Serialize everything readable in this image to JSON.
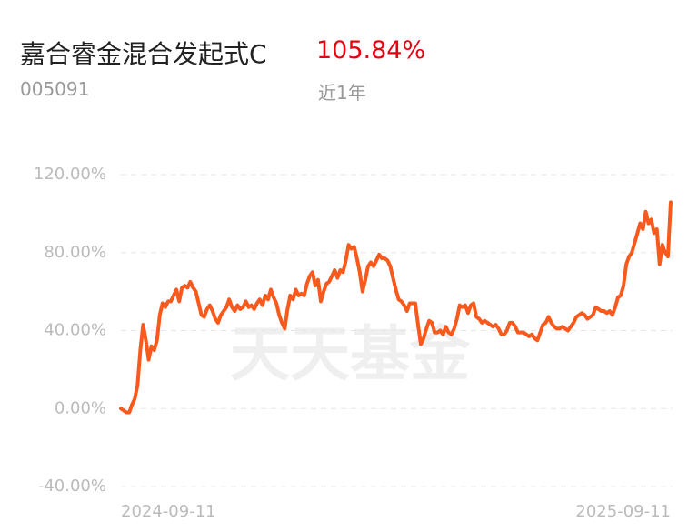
{
  "chart_data": {
    "type": "line",
    "title": "嘉合睿金混合发起式C",
    "subtitle": "105.84%",
    "fund_code": "005091",
    "period": "近1年",
    "watermark": "天天基金",
    "categories": [
      "2024-09-11",
      null,
      null,
      null,
      null,
      null,
      null,
      null,
      null,
      null,
      null,
      null,
      null,
      null,
      null,
      null,
      null,
      null,
      null,
      null,
      null,
      null,
      null,
      null,
      null,
      null,
      null,
      null,
      null,
      null,
      null,
      null,
      null,
      null,
      null,
      null,
      null,
      null,
      null,
      null,
      null,
      null,
      null,
      null,
      null,
      null,
      null,
      null,
      null,
      null,
      null,
      null,
      null,
      null,
      null,
      null,
      null,
      null,
      null,
      null,
      null,
      null,
      null,
      null,
      null,
      null,
      null,
      null,
      null,
      null,
      null,
      null,
      null,
      null,
      null,
      null,
      null,
      null,
      null,
      null,
      null,
      null,
      null,
      null,
      null,
      null,
      null,
      null,
      null,
      null,
      null,
      null,
      null,
      null,
      null,
      null,
      null,
      null,
      null,
      null,
      null,
      null,
      null,
      null,
      null,
      null,
      null,
      null,
      null,
      null,
      null,
      null,
      null,
      null,
      null,
      null,
      null,
      null,
      null,
      null,
      null,
      null,
      null,
      null,
      null,
      null,
      null,
      null,
      null,
      null,
      null,
      null,
      null,
      null,
      null,
      null,
      null,
      null,
      null,
      null,
      null,
      null,
      null,
      null,
      null,
      null,
      null,
      null,
      null,
      null,
      null,
      null,
      null,
      null,
      null,
      null,
      null,
      null,
      null,
      null,
      null,
      null,
      null,
      null,
      null,
      null,
      null,
      null,
      null,
      null,
      null,
      null,
      null,
      null,
      null,
      null,
      null,
      null,
      null,
      null,
      null,
      null,
      null,
      null,
      null,
      null,
      null,
      null,
      null,
      null,
      null,
      null,
      null,
      null,
      null,
      null,
      null,
      null,
      "2025-09-11"
    ],
    "values": [
      0,
      -1,
      -2,
      -2,
      2,
      5,
      12,
      30,
      43,
      35,
      25,
      32,
      30,
      35,
      48,
      54,
      52,
      55,
      55,
      58,
      61,
      55,
      62,
      63,
      62,
      65,
      62,
      60,
      54,
      48,
      47,
      51,
      53,
      50,
      46,
      44,
      48,
      50,
      52,
      56,
      52,
      50,
      53,
      51,
      52,
      55,
      52,
      53,
      51,
      54,
      56,
      53,
      58,
      56,
      61,
      57,
      54,
      48,
      44,
      41,
      51,
      58,
      56,
      61,
      58,
      59,
      58,
      64,
      68,
      70,
      63,
      66,
      55,
      60,
      64,
      65,
      68,
      71,
      67,
      71,
      70,
      76,
      84,
      82,
      83,
      77,
      70,
      60,
      66,
      73,
      75,
      73,
      76,
      79,
      77,
      77,
      76,
      73,
      67,
      61,
      56,
      55,
      53,
      50,
      54,
      54,
      54,
      43,
      33,
      36,
      41,
      45,
      44,
      39,
      39,
      40,
      38,
      42,
      39,
      38,
      41,
      46,
      53,
      52,
      53,
      49,
      53,
      54,
      47,
      46,
      44,
      45,
      44,
      43,
      42,
      43,
      41,
      38,
      38,
      40,
      44,
      44,
      42,
      39,
      39,
      39,
      38,
      37,
      38,
      36,
      35,
      39,
      43,
      44,
      47,
      44,
      42,
      41,
      41,
      42,
      41,
      40,
      42,
      44,
      47,
      48,
      49,
      48,
      46,
      47,
      48,
      52,
      51,
      50,
      50,
      49,
      50,
      48,
      52,
      57,
      58,
      63,
      74,
      78,
      80,
      85,
      90,
      95,
      92,
      101,
      95,
      97,
      90,
      92,
      74,
      84,
      80,
      78,
      105.84
    ],
    "color": "#f85a1e",
    "ylim": [
      -40,
      120
    ],
    "yticks": [
      {
        "value": -40,
        "label": "-40.00%"
      },
      {
        "value": 0,
        "label": "0.00%"
      },
      {
        "value": 40,
        "label": "40.00%"
      },
      {
        "value": 80,
        "label": "80.00%"
      },
      {
        "value": 120,
        "label": "120.00%"
      }
    ],
    "grid": true
  }
}
